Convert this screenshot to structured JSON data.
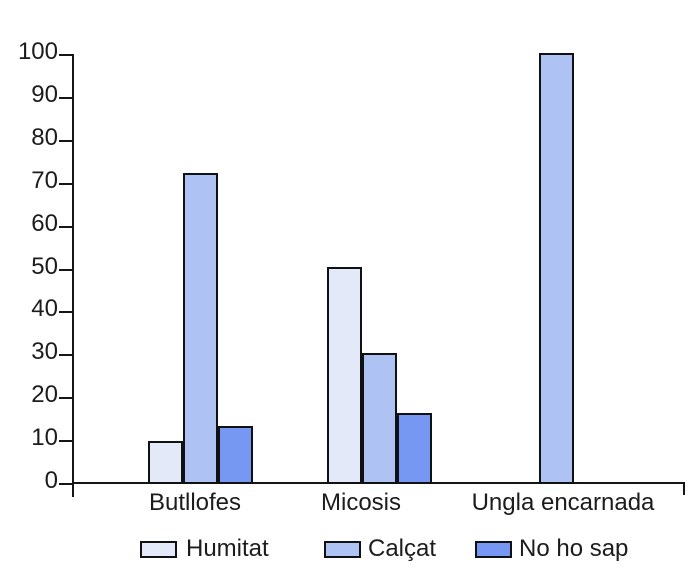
{
  "chart_data": {
    "type": "bar",
    "title": "",
    "categories": [
      "Butllofes",
      "Micosis",
      "Ungla encarnada"
    ],
    "series": [
      {
        "name": "Humitat",
        "color": "#e3e9f9",
        "values": [
          10,
          50.5,
          0
        ]
      },
      {
        "name": "Calçat",
        "color": "#aec2f4",
        "values": [
          72.5,
          30.5,
          100.5
        ]
      },
      {
        "name": "No ho sap",
        "color": "#7697f2",
        "values": [
          13.5,
          16.5,
          0
        ]
      }
    ],
    "xlabel": "",
    "ylabel": "",
    "ylim": [
      0,
      100
    ],
    "ytick_step": 10,
    "ytick_labels": [
      "0",
      "10",
      "20",
      "30",
      "40",
      "50",
      "60",
      "70",
      "80",
      "90",
      "100"
    ],
    "grid": false,
    "legend_position": "bottom",
    "axis_color": "#151515",
    "bar_border_color": "#111111"
  }
}
